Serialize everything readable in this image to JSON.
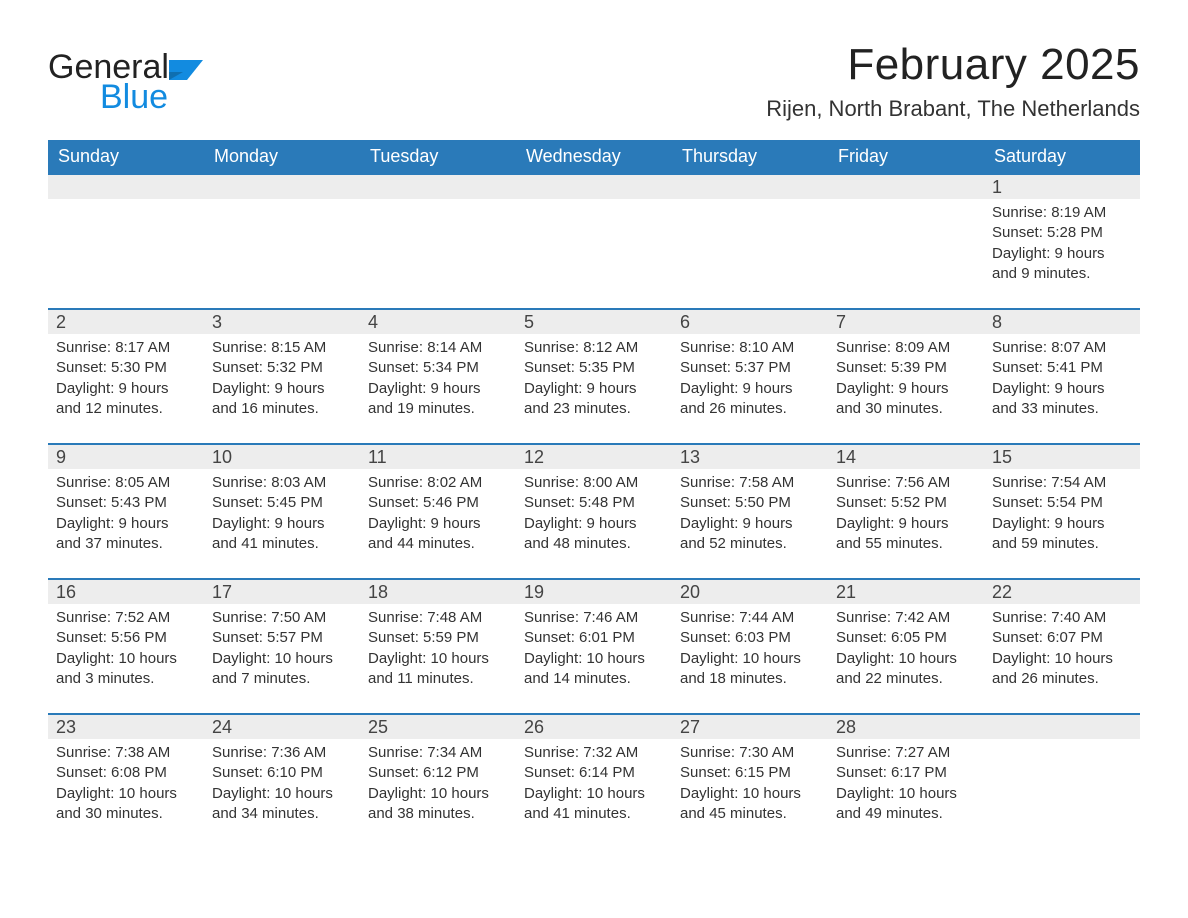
{
  "logo": {
    "word1": "General",
    "word2": "Blue",
    "mark_color": "#128be0"
  },
  "header": {
    "month_title": "February 2025",
    "location": "Rijen, North Brabant, The Netherlands"
  },
  "calendar": {
    "type": "table",
    "header_bg": "#2a7ab9",
    "header_fg": "#ffffff",
    "divider_color": "#2a7ab9",
    "daynum_bg": "#ededed",
    "text_color": "#333333",
    "columns": [
      "Sunday",
      "Monday",
      "Tuesday",
      "Wednesday",
      "Thursday",
      "Friday",
      "Saturday"
    ],
    "weeks": [
      [
        {
          "day": "",
          "sunrise": "",
          "sunset": "",
          "daylight": ""
        },
        {
          "day": "",
          "sunrise": "",
          "sunset": "",
          "daylight": ""
        },
        {
          "day": "",
          "sunrise": "",
          "sunset": "",
          "daylight": ""
        },
        {
          "day": "",
          "sunrise": "",
          "sunset": "",
          "daylight": ""
        },
        {
          "day": "",
          "sunrise": "",
          "sunset": "",
          "daylight": ""
        },
        {
          "day": "",
          "sunrise": "",
          "sunset": "",
          "daylight": ""
        },
        {
          "day": "1",
          "sunrise": "Sunrise: 8:19 AM",
          "sunset": "Sunset: 5:28 PM",
          "daylight": "Daylight: 9 hours and 9 minutes."
        }
      ],
      [
        {
          "day": "2",
          "sunrise": "Sunrise: 8:17 AM",
          "sunset": "Sunset: 5:30 PM",
          "daylight": "Daylight: 9 hours and 12 minutes."
        },
        {
          "day": "3",
          "sunrise": "Sunrise: 8:15 AM",
          "sunset": "Sunset: 5:32 PM",
          "daylight": "Daylight: 9 hours and 16 minutes."
        },
        {
          "day": "4",
          "sunrise": "Sunrise: 8:14 AM",
          "sunset": "Sunset: 5:34 PM",
          "daylight": "Daylight: 9 hours and 19 minutes."
        },
        {
          "day": "5",
          "sunrise": "Sunrise: 8:12 AM",
          "sunset": "Sunset: 5:35 PM",
          "daylight": "Daylight: 9 hours and 23 minutes."
        },
        {
          "day": "6",
          "sunrise": "Sunrise: 8:10 AM",
          "sunset": "Sunset: 5:37 PM",
          "daylight": "Daylight: 9 hours and 26 minutes."
        },
        {
          "day": "7",
          "sunrise": "Sunrise: 8:09 AM",
          "sunset": "Sunset: 5:39 PM",
          "daylight": "Daylight: 9 hours and 30 minutes."
        },
        {
          "day": "8",
          "sunrise": "Sunrise: 8:07 AM",
          "sunset": "Sunset: 5:41 PM",
          "daylight": "Daylight: 9 hours and 33 minutes."
        }
      ],
      [
        {
          "day": "9",
          "sunrise": "Sunrise: 8:05 AM",
          "sunset": "Sunset: 5:43 PM",
          "daylight": "Daylight: 9 hours and 37 minutes."
        },
        {
          "day": "10",
          "sunrise": "Sunrise: 8:03 AM",
          "sunset": "Sunset: 5:45 PM",
          "daylight": "Daylight: 9 hours and 41 minutes."
        },
        {
          "day": "11",
          "sunrise": "Sunrise: 8:02 AM",
          "sunset": "Sunset: 5:46 PM",
          "daylight": "Daylight: 9 hours and 44 minutes."
        },
        {
          "day": "12",
          "sunrise": "Sunrise: 8:00 AM",
          "sunset": "Sunset: 5:48 PM",
          "daylight": "Daylight: 9 hours and 48 minutes."
        },
        {
          "day": "13",
          "sunrise": "Sunrise: 7:58 AM",
          "sunset": "Sunset: 5:50 PM",
          "daylight": "Daylight: 9 hours and 52 minutes."
        },
        {
          "day": "14",
          "sunrise": "Sunrise: 7:56 AM",
          "sunset": "Sunset: 5:52 PM",
          "daylight": "Daylight: 9 hours and 55 minutes."
        },
        {
          "day": "15",
          "sunrise": "Sunrise: 7:54 AM",
          "sunset": "Sunset: 5:54 PM",
          "daylight": "Daylight: 9 hours and 59 minutes."
        }
      ],
      [
        {
          "day": "16",
          "sunrise": "Sunrise: 7:52 AM",
          "sunset": "Sunset: 5:56 PM",
          "daylight": "Daylight: 10 hours and 3 minutes."
        },
        {
          "day": "17",
          "sunrise": "Sunrise: 7:50 AM",
          "sunset": "Sunset: 5:57 PM",
          "daylight": "Daylight: 10 hours and 7 minutes."
        },
        {
          "day": "18",
          "sunrise": "Sunrise: 7:48 AM",
          "sunset": "Sunset: 5:59 PM",
          "daylight": "Daylight: 10 hours and 11 minutes."
        },
        {
          "day": "19",
          "sunrise": "Sunrise: 7:46 AM",
          "sunset": "Sunset: 6:01 PM",
          "daylight": "Daylight: 10 hours and 14 minutes."
        },
        {
          "day": "20",
          "sunrise": "Sunrise: 7:44 AM",
          "sunset": "Sunset: 6:03 PM",
          "daylight": "Daylight: 10 hours and 18 minutes."
        },
        {
          "day": "21",
          "sunrise": "Sunrise: 7:42 AM",
          "sunset": "Sunset: 6:05 PM",
          "daylight": "Daylight: 10 hours and 22 minutes."
        },
        {
          "day": "22",
          "sunrise": "Sunrise: 7:40 AM",
          "sunset": "Sunset: 6:07 PM",
          "daylight": "Daylight: 10 hours and 26 minutes."
        }
      ],
      [
        {
          "day": "23",
          "sunrise": "Sunrise: 7:38 AM",
          "sunset": "Sunset: 6:08 PM",
          "daylight": "Daylight: 10 hours and 30 minutes."
        },
        {
          "day": "24",
          "sunrise": "Sunrise: 7:36 AM",
          "sunset": "Sunset: 6:10 PM",
          "daylight": "Daylight: 10 hours and 34 minutes."
        },
        {
          "day": "25",
          "sunrise": "Sunrise: 7:34 AM",
          "sunset": "Sunset: 6:12 PM",
          "daylight": "Daylight: 10 hours and 38 minutes."
        },
        {
          "day": "26",
          "sunrise": "Sunrise: 7:32 AM",
          "sunset": "Sunset: 6:14 PM",
          "daylight": "Daylight: 10 hours and 41 minutes."
        },
        {
          "day": "27",
          "sunrise": "Sunrise: 7:30 AM",
          "sunset": "Sunset: 6:15 PM",
          "daylight": "Daylight: 10 hours and 45 minutes."
        },
        {
          "day": "28",
          "sunrise": "Sunrise: 7:27 AM",
          "sunset": "Sunset: 6:17 PM",
          "daylight": "Daylight: 10 hours and 49 minutes."
        },
        {
          "day": "",
          "sunrise": "",
          "sunset": "",
          "daylight": ""
        }
      ]
    ]
  }
}
